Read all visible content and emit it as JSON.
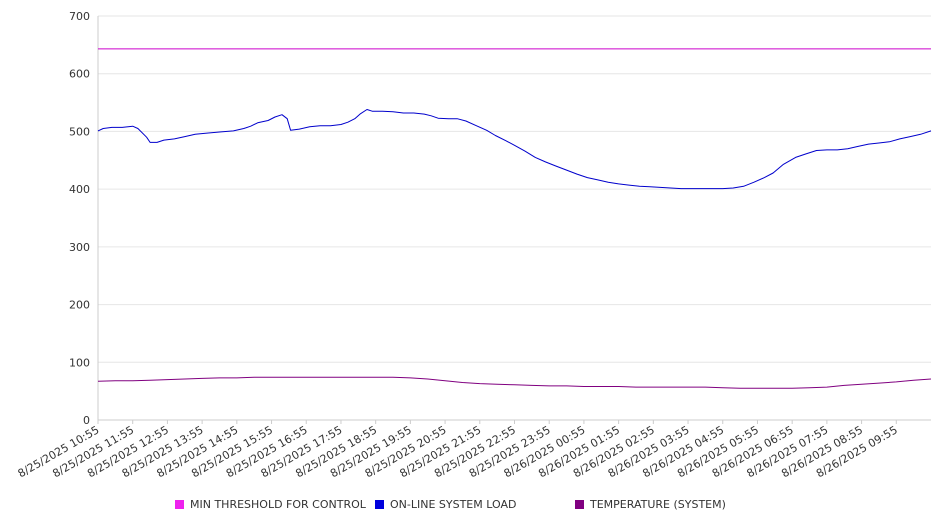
{
  "chart_data": {
    "type": "line",
    "x_tick_labels": [
      "8/25/2025 10:55",
      "8/25/2025 11:55",
      "8/25/2025 12:55",
      "8/25/2025 13:55",
      "8/25/2025 14:55",
      "8/25/2025 15:55",
      "8/25/2025 16:55",
      "8/25/2025 17:55",
      "8/25/2025 18:55",
      "8/25/2025 19:55",
      "8/25/2025 20:55",
      "8/25/2025 21:55",
      "8/25/2025 22:55",
      "8/25/2025 23:55",
      "8/26/2025 00:55",
      "8/26/2025 01:55",
      "8/26/2025 02:55",
      "8/26/2025 03:55",
      "8/26/2025 04:55",
      "8/26/2025 05:55",
      "8/26/2025 06:55",
      "8/26/2025 07:55",
      "8/26/2025 08:55",
      "8/26/2025 09:55"
    ],
    "x_range_hours": [
      0,
      24
    ],
    "ylim": [
      0,
      700
    ],
    "y_ticks": [
      0,
      100,
      200,
      300,
      400,
      500,
      600,
      700
    ],
    "grid": "horizontal",
    "legend_position": "bottom",
    "series": [
      {
        "name": "MIN THRESHOLD FOR CONTROL",
        "color": "#cc00cc",
        "points": [
          [
            0,
            643
          ],
          [
            24,
            643
          ]
        ]
      },
      {
        "name": "ON-LINE SYSTEM LOAD",
        "color": "#0000cc",
        "points": [
          [
            0,
            501
          ],
          [
            0.15,
            505
          ],
          [
            0.4,
            507
          ],
          [
            0.7,
            507
          ],
          [
            1.0,
            509
          ],
          [
            1.15,
            505
          ],
          [
            1.4,
            490
          ],
          [
            1.5,
            481
          ],
          [
            1.7,
            481
          ],
          [
            1.9,
            485
          ],
          [
            2.2,
            487
          ],
          [
            2.5,
            491
          ],
          [
            2.8,
            495
          ],
          [
            3.1,
            497
          ],
          [
            3.5,
            499
          ],
          [
            3.9,
            501
          ],
          [
            4.2,
            505
          ],
          [
            4.4,
            509
          ],
          [
            4.6,
            515
          ],
          [
            4.9,
            519
          ],
          [
            5.1,
            525
          ],
          [
            5.3,
            529
          ],
          [
            5.45,
            522
          ],
          [
            5.55,
            502
          ],
          [
            5.8,
            504
          ],
          [
            6.1,
            508
          ],
          [
            6.4,
            510
          ],
          [
            6.7,
            510
          ],
          [
            7.0,
            512
          ],
          [
            7.2,
            516
          ],
          [
            7.4,
            522
          ],
          [
            7.55,
            530
          ],
          [
            7.75,
            538
          ],
          [
            7.9,
            535
          ],
          [
            8.2,
            535
          ],
          [
            8.5,
            534
          ],
          [
            8.8,
            532
          ],
          [
            9.1,
            532
          ],
          [
            9.4,
            530
          ],
          [
            9.6,
            527
          ],
          [
            9.8,
            523
          ],
          [
            10.1,
            522
          ],
          [
            10.35,
            522
          ],
          [
            10.6,
            518
          ],
          [
            10.9,
            510
          ],
          [
            11.2,
            502
          ],
          [
            11.45,
            493
          ],
          [
            11.75,
            484
          ],
          [
            12.0,
            476
          ],
          [
            12.3,
            466
          ],
          [
            12.6,
            455
          ],
          [
            12.9,
            447
          ],
          [
            13.2,
            440
          ],
          [
            13.5,
            433
          ],
          [
            13.8,
            426
          ],
          [
            14.1,
            420
          ],
          [
            14.4,
            416
          ],
          [
            14.7,
            412
          ],
          [
            15.0,
            409
          ],
          [
            15.3,
            407
          ],
          [
            15.6,
            405
          ],
          [
            15.9,
            404
          ],
          [
            16.2,
            403
          ],
          [
            16.5,
            402
          ],
          [
            16.8,
            401
          ],
          [
            17.1,
            401
          ],
          [
            17.4,
            401
          ],
          [
            17.7,
            401
          ],
          [
            18.0,
            401
          ],
          [
            18.3,
            402
          ],
          [
            18.6,
            405
          ],
          [
            18.9,
            412
          ],
          [
            19.2,
            420
          ],
          [
            19.45,
            428
          ],
          [
            19.75,
            443
          ],
          [
            20.1,
            455
          ],
          [
            20.4,
            461
          ],
          [
            20.7,
            467
          ],
          [
            21.0,
            468
          ],
          [
            21.3,
            468
          ],
          [
            21.6,
            470
          ],
          [
            21.9,
            474
          ],
          [
            22.2,
            478
          ],
          [
            22.5,
            480
          ],
          [
            22.8,
            482
          ],
          [
            23.1,
            487
          ],
          [
            23.4,
            491
          ],
          [
            23.7,
            495
          ],
          [
            24.0,
            501
          ]
        ]
      },
      {
        "name": "TEMPERATURE (SYSTEM)",
        "color": "#800080",
        "points": [
          [
            0,
            67
          ],
          [
            0.5,
            68
          ],
          [
            1.0,
            68
          ],
          [
            1.5,
            69
          ],
          [
            2.0,
            70
          ],
          [
            2.5,
            71
          ],
          [
            3.0,
            72
          ],
          [
            3.5,
            73
          ],
          [
            4.0,
            73
          ],
          [
            4.5,
            74
          ],
          [
            5.0,
            74
          ],
          [
            5.5,
            74
          ],
          [
            6.0,
            74
          ],
          [
            6.5,
            74
          ],
          [
            7.0,
            74
          ],
          [
            7.5,
            74
          ],
          [
            8.0,
            74
          ],
          [
            8.5,
            74
          ],
          [
            9.0,
            73
          ],
          [
            9.5,
            71
          ],
          [
            10.0,
            68
          ],
          [
            10.5,
            65
          ],
          [
            11.0,
            63
          ],
          [
            11.5,
            62
          ],
          [
            12.0,
            61
          ],
          [
            12.5,
            60
          ],
          [
            13.0,
            59
          ],
          [
            13.5,
            59
          ],
          [
            14.0,
            58
          ],
          [
            14.5,
            58
          ],
          [
            15.0,
            58
          ],
          [
            15.5,
            57
          ],
          [
            16.0,
            57
          ],
          [
            16.5,
            57
          ],
          [
            17.0,
            57
          ],
          [
            17.5,
            57
          ],
          [
            18.0,
            56
          ],
          [
            18.5,
            55
          ],
          [
            19.0,
            55
          ],
          [
            19.5,
            55
          ],
          [
            20.0,
            55
          ],
          [
            20.5,
            56
          ],
          [
            21.0,
            57
          ],
          [
            21.5,
            60
          ],
          [
            22.0,
            62
          ],
          [
            22.5,
            64
          ],
          [
            23.0,
            66
          ],
          [
            23.5,
            69
          ],
          [
            24.0,
            71
          ]
        ]
      }
    ]
  },
  "legend": {
    "items": [
      {
        "label": "MIN THRESHOLD FOR CONTROL",
        "color": "#ee22ee"
      },
      {
        "label": "ON-LINE SYSTEM LOAD",
        "color": "#0000dd"
      },
      {
        "label": "TEMPERATURE (SYSTEM)",
        "color": "#800080"
      }
    ]
  }
}
